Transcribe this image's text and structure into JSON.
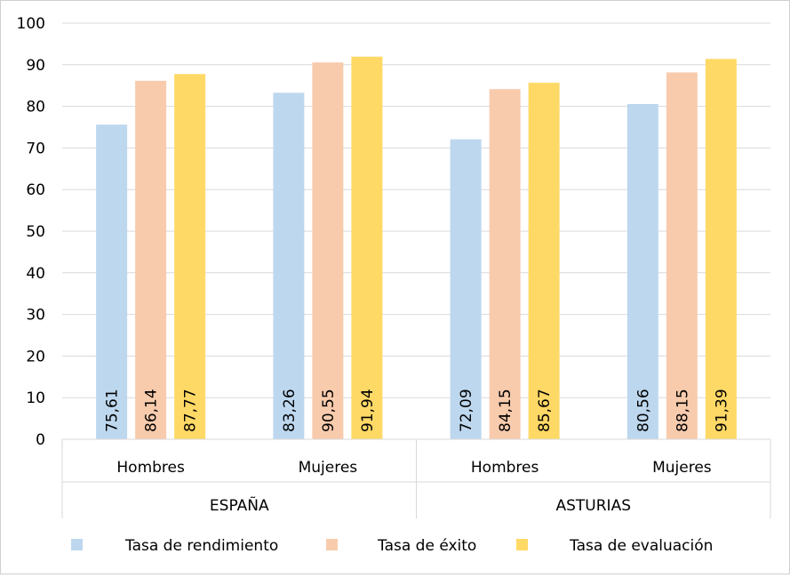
{
  "chart_data": {
    "type": "bar",
    "title": "",
    "xlabel": "",
    "ylabel": "",
    "ylim": [
      0,
      100
    ],
    "yticks": [
      0,
      10,
      20,
      30,
      40,
      50,
      60,
      70,
      80,
      90,
      100
    ],
    "groups": [
      {
        "label": "ESPAÑA",
        "categories": [
          "Hombres",
          "Mujeres"
        ]
      },
      {
        "label": "ASTURIAS",
        "categories": [
          "Hombres",
          "Mujeres"
        ]
      }
    ],
    "series": [
      {
        "name": "Tasa de rendimiento",
        "color": "#bdd7ee",
        "values": [
          75.61,
          83.26,
          72.09,
          80.56
        ],
        "labels": [
          "75,61",
          "83,26",
          "72,09",
          "80,56"
        ]
      },
      {
        "name": "Tasa de éxito",
        "color": "#f8cbad",
        "values": [
          86.14,
          90.55,
          84.15,
          88.15
        ],
        "labels": [
          "86,14",
          "90,55",
          "84,15",
          "88,15"
        ]
      },
      {
        "name": "Tasa de evaluación",
        "color": "#ffd966",
        "values": [
          87.77,
          91.94,
          85.67,
          91.39
        ],
        "labels": [
          "87,77",
          "91,94",
          "85,67",
          "91,39"
        ]
      }
    ],
    "grid": true,
    "legend": "bottom"
  }
}
